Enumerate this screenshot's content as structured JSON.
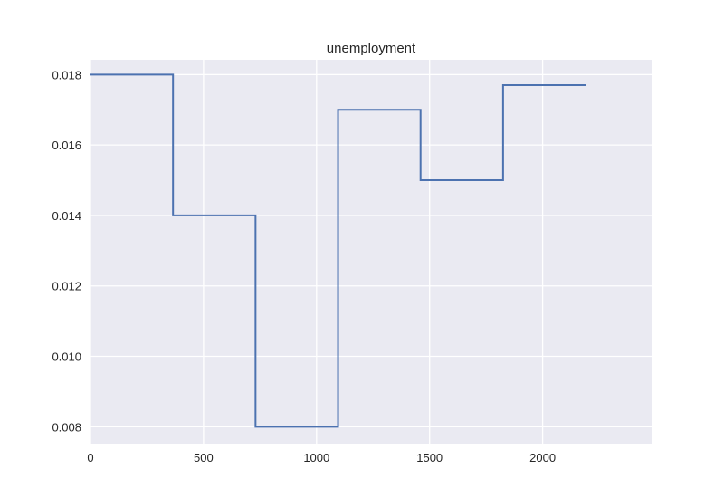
{
  "chart_data": {
    "type": "line",
    "drawstyle": "steps-post",
    "title": "unemployment",
    "xlabel": "",
    "ylabel": "",
    "xlim": [
      0,
      2482
    ],
    "ylim": [
      0.00752,
      0.01842
    ],
    "x_ticks": [
      0,
      500,
      1000,
      1500,
      2000
    ],
    "x_tick_labels": [
      "0",
      "500",
      "1000",
      "1500",
      "2000"
    ],
    "y_ticks": [
      0.008,
      0.01,
      0.012,
      0.014,
      0.016,
      0.018
    ],
    "y_tick_labels": [
      "0.008",
      "0.010",
      "0.012",
      "0.014",
      "0.016",
      "0.018"
    ],
    "grid": true,
    "legend": false,
    "colors": {
      "background": "#EAEAF2",
      "grid": "#FFFFFF",
      "line": "#4C72B0",
      "text": "#262626"
    },
    "series": [
      {
        "x": [
          0,
          365,
          730,
          1095,
          1460,
          1825,
          2190
        ],
        "values": [
          0.018,
          0.014,
          0.008,
          0.017,
          0.015,
          0.0177,
          0.0177
        ]
      }
    ]
  }
}
